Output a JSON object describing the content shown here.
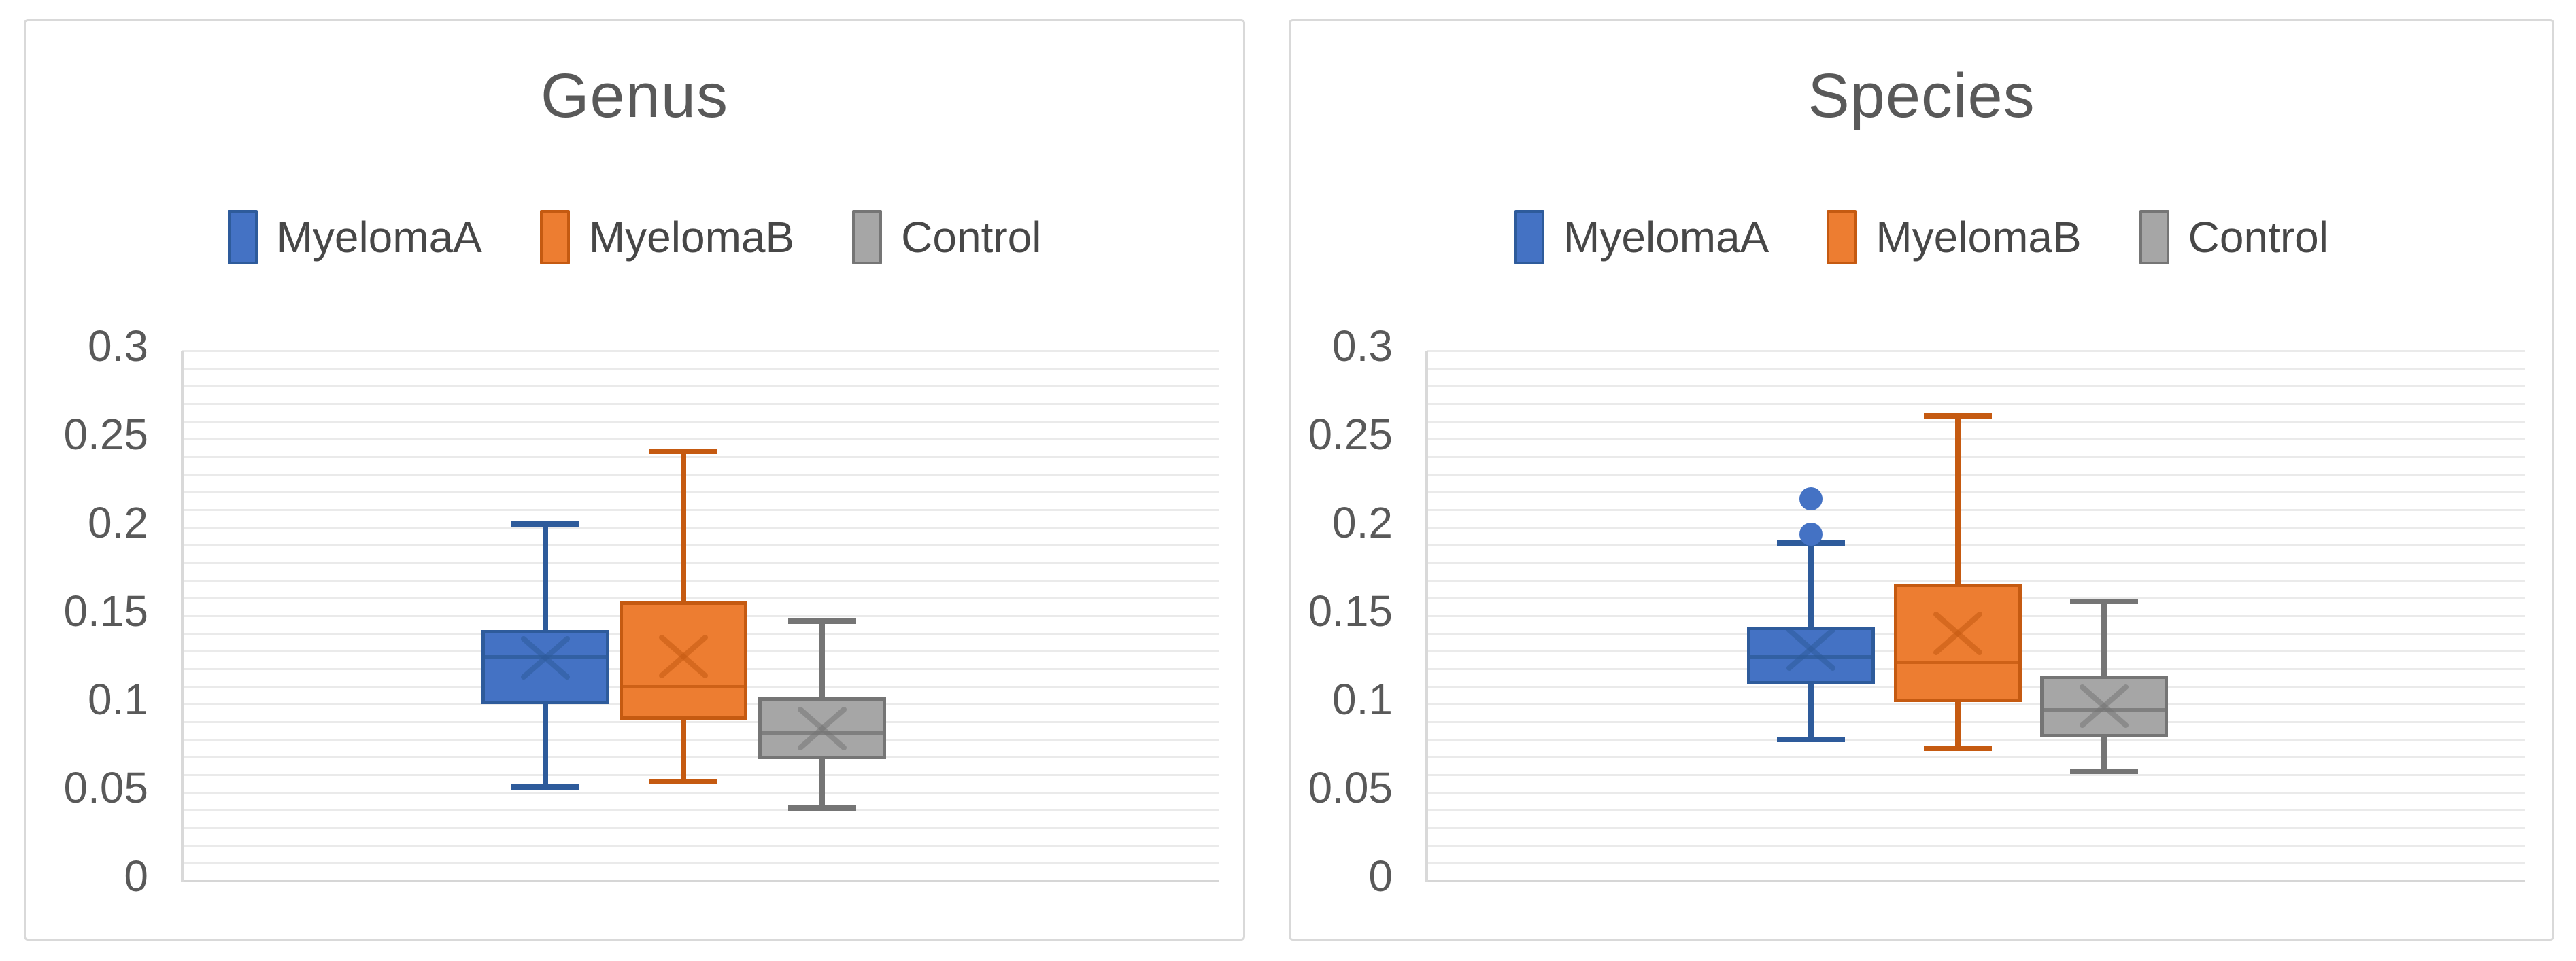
{
  "chart_data": [
    {
      "type": "box",
      "title": "Genus",
      "ylim": [
        0,
        0.3
      ],
      "y_tick_labels": [
        "0.3",
        "0.25",
        "0.2",
        "0.15",
        "0.1",
        "0.05",
        "0"
      ],
      "y_major_step": 0.05,
      "y_minor_step": 0.01,
      "grid": true,
      "legend_position": "top",
      "legend_labels": [
        "MyelomaA",
        "MyelomaB",
        "Control"
      ],
      "series": [
        {
          "name": "MyelomaA",
          "fill": "#4472C4",
          "border": "#2E5B9B",
          "whisker_low": 0.053,
          "q1": 0.1,
          "median": 0.127,
          "mean": 0.126,
          "q3": 0.142,
          "whisker_high": 0.202,
          "outliers": []
        },
        {
          "name": "MyelomaB",
          "fill": "#ED7D31",
          "border": "#C55A11",
          "whisker_low": 0.056,
          "q1": 0.091,
          "median": 0.11,
          "mean": 0.127,
          "q3": 0.158,
          "whisker_high": 0.243,
          "outliers": []
        },
        {
          "name": "Control",
          "fill": "#A6A6A6",
          "border": "#757575",
          "whisker_low": 0.041,
          "q1": 0.069,
          "median": 0.084,
          "mean": 0.086,
          "q3": 0.104,
          "whisker_high": 0.147,
          "outliers": []
        }
      ]
    },
    {
      "type": "box",
      "title": "Species",
      "ylim": [
        0,
        0.3
      ],
      "y_tick_labels": [
        "0.3",
        "0.25",
        "0.2",
        "0.15",
        "0.1",
        "0.05",
        "0"
      ],
      "y_major_step": 0.05,
      "y_minor_step": 0.01,
      "grid": true,
      "legend_position": "top",
      "legend_labels": [
        "MyelomaA",
        "MyelomaB",
        "Control"
      ],
      "series": [
        {
          "name": "MyelomaA",
          "fill": "#4472C4",
          "border": "#2E5B9B",
          "whisker_low": 0.08,
          "q1": 0.111,
          "median": 0.127,
          "mean": 0.131,
          "q3": 0.144,
          "whisker_high": 0.191,
          "outliers": [
            0.196,
            0.216
          ]
        },
        {
          "name": "MyelomaB",
          "fill": "#ED7D31",
          "border": "#C55A11",
          "whisker_low": 0.075,
          "q1": 0.101,
          "median": 0.124,
          "mean": 0.14,
          "q3": 0.168,
          "whisker_high": 0.263,
          "outliers": []
        },
        {
          "name": "Control",
          "fill": "#A6A6A6",
          "border": "#757575",
          "whisker_low": 0.062,
          "q1": 0.081,
          "median": 0.097,
          "mean": 0.099,
          "q3": 0.116,
          "whisker_high": 0.158,
          "outliers": []
        }
      ]
    }
  ]
}
